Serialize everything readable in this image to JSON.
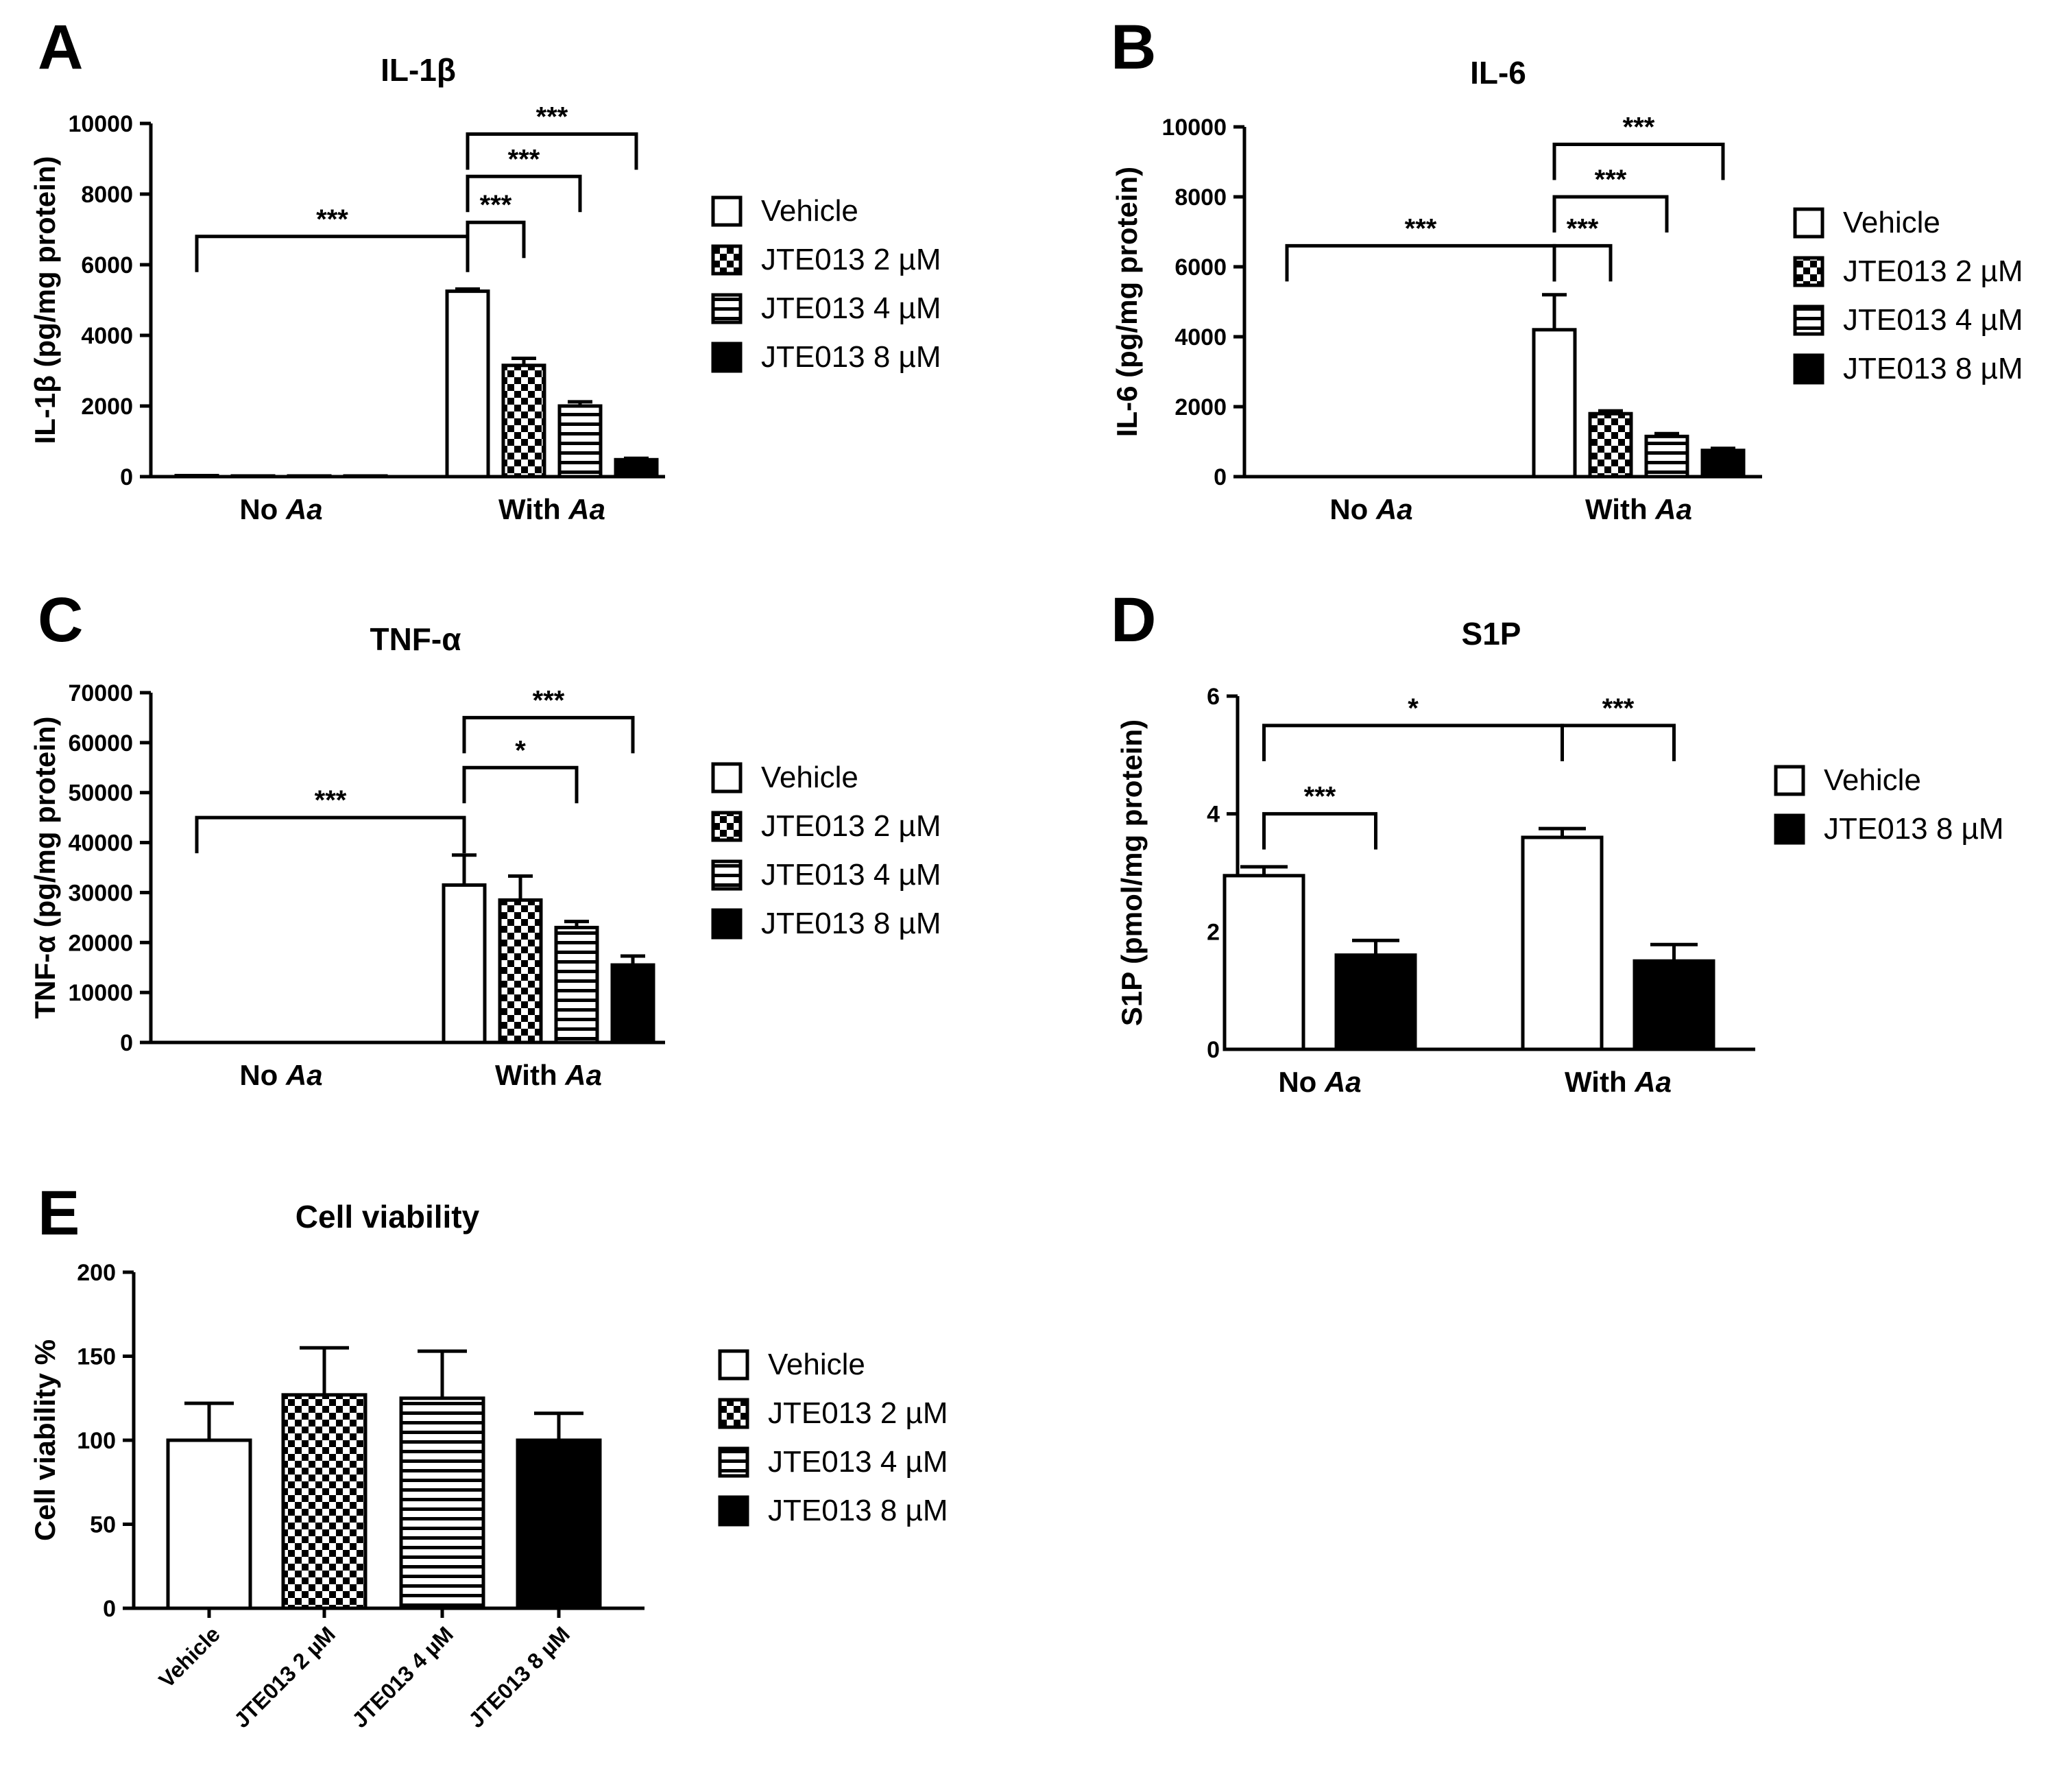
{
  "legend_labels": {
    "vehicle": "Vehicle",
    "jte2": "JTE013 2 µM",
    "jte4": "JTE013 4 µM",
    "jte8": "JTE013 8 µM"
  },
  "chart_data": [
    {
      "panel": "A",
      "type": "bar",
      "title": "IL-1β",
      "ylabel": "IL-1β (pg/mg protein)",
      "xlabel": "",
      "ylim": [
        0,
        10000
      ],
      "yticks": [
        "0",
        "2000",
        "4000",
        "6000",
        "8000",
        "10000"
      ],
      "groups": [
        {
          "pre": "No ",
          "it": "Aa"
        },
        {
          "pre": "With ",
          "it": "Aa"
        }
      ],
      "series": [
        {
          "name": "Vehicle",
          "pattern": "white",
          "values": [
            30,
            5250
          ],
          "errors": [
            0,
            60
          ]
        },
        {
          "name": "JTE013 2 µM",
          "pattern": "checker",
          "values": [
            20,
            3150
          ],
          "errors": [
            0,
            200
          ]
        },
        {
          "name": "JTE013 4 µM",
          "pattern": "hlines",
          "values": [
            20,
            2000
          ],
          "errors": [
            0,
            120
          ]
        },
        {
          "name": "JTE013 8 µM",
          "pattern": "black",
          "values": [
            20,
            480
          ],
          "errors": [
            0,
            40
          ]
        }
      ],
      "legend": [
        "Vehicle",
        "JTE013 2 µM",
        "JTE013 4 µM",
        "JTE013 8 µM"
      ],
      "annotations": [
        {
          "text": "***",
          "from": [
            0,
            0
          ],
          "to": [
            1,
            0
          ],
          "y": 6800
        },
        {
          "text": "***",
          "from": [
            1,
            0
          ],
          "to": [
            1,
            1
          ],
          "y": 7200
        },
        {
          "text": "***",
          "from": [
            1,
            0
          ],
          "to": [
            1,
            2
          ],
          "y": 8500
        },
        {
          "text": "***",
          "from": [
            1,
            0
          ],
          "to": [
            1,
            3
          ],
          "y": 9700
        }
      ]
    },
    {
      "panel": "B",
      "type": "bar",
      "title": "IL-6",
      "ylabel": "IL-6 (pg/mg protein)",
      "xlabel": "",
      "ylim": [
        0,
        10000
      ],
      "yticks": [
        "0",
        "2000",
        "4000",
        "6000",
        "8000",
        "10000"
      ],
      "groups": [
        {
          "pre": "No ",
          "it": "Aa"
        },
        {
          "pre": "With ",
          "it": "Aa"
        }
      ],
      "series": [
        {
          "name": "Vehicle",
          "pattern": "white",
          "values": [
            0,
            4200
          ],
          "errors": [
            0,
            1000
          ]
        },
        {
          "name": "JTE013 2 µM",
          "pattern": "checker",
          "values": [
            0,
            1800
          ],
          "errors": [
            0,
            80
          ]
        },
        {
          "name": "JTE013 4 µM",
          "pattern": "hlines",
          "values": [
            0,
            1150
          ],
          "errors": [
            0,
            80
          ]
        },
        {
          "name": "JTE013 8 µM",
          "pattern": "black",
          "values": [
            0,
            750
          ],
          "errors": [
            0,
            60
          ]
        }
      ],
      "legend": [
        "Vehicle",
        "JTE013 2 µM",
        "JTE013 4 µM",
        "JTE013 8 µM"
      ],
      "annotations": [
        {
          "text": "***",
          "from": [
            0,
            0
          ],
          "to": [
            1,
            0
          ],
          "y": 6600
        },
        {
          "text": "***",
          "from": [
            1,
            0
          ],
          "to": [
            1,
            1
          ],
          "y": 6600
        },
        {
          "text": "***",
          "from": [
            1,
            0
          ],
          "to": [
            1,
            2
          ],
          "y": 8000
        },
        {
          "text": "***",
          "from": [
            1,
            0
          ],
          "to": [
            1,
            3
          ],
          "y": 9500
        }
      ]
    },
    {
      "panel": "C",
      "type": "bar",
      "title": "TNF-α",
      "ylabel": "TNF-α (pg/mg protein)",
      "xlabel": "",
      "ylim": [
        0,
        70000
      ],
      "yticks": [
        "0",
        "10000",
        "20000",
        "30000",
        "40000",
        "50000",
        "60000",
        "70000"
      ],
      "groups": [
        {
          "pre": "No ",
          "it": "Aa"
        },
        {
          "pre": "With ",
          "it": "Aa"
        }
      ],
      "series": [
        {
          "name": "Vehicle",
          "pattern": "white",
          "values": [
            0,
            31500
          ],
          "errors": [
            0,
            6000
          ]
        },
        {
          "name": "JTE013 2 µM",
          "pattern": "checker",
          "values": [
            0,
            28500
          ],
          "errors": [
            0,
            4800
          ]
        },
        {
          "name": "JTE013 4 µM",
          "pattern": "hlines",
          "values": [
            0,
            23000
          ],
          "errors": [
            0,
            1200
          ]
        },
        {
          "name": "JTE013 8 µM",
          "pattern": "black",
          "values": [
            0,
            15500
          ],
          "errors": [
            0,
            1800
          ]
        }
      ],
      "legend": [
        "Vehicle",
        "JTE013 2 µM",
        "JTE013 4 µM",
        "JTE013 8 µM"
      ],
      "annotations": [
        {
          "text": "***",
          "from": [
            0,
            0
          ],
          "to": [
            1,
            0
          ],
          "y": 45000
        },
        {
          "text": "*",
          "from": [
            1,
            0
          ],
          "to": [
            1,
            2
          ],
          "y": 55000
        },
        {
          "text": "***",
          "from": [
            1,
            0
          ],
          "to": [
            1,
            3
          ],
          "y": 65000
        }
      ]
    },
    {
      "panel": "D",
      "type": "bar",
      "title": "S1P",
      "ylabel": "S1P (pmol/mg protein)",
      "xlabel": "",
      "ylim": [
        0,
        6
      ],
      "yticks": [
        "0",
        "2",
        "4",
        "6"
      ],
      "groups": [
        {
          "pre": "No ",
          "it": "Aa"
        },
        {
          "pre": "With ",
          "it": "Aa"
        }
      ],
      "series": [
        {
          "name": "Vehicle",
          "pattern": "white",
          "values": [
            2.95,
            3.6
          ],
          "errors": [
            0.15,
            0.15
          ]
        },
        {
          "name": "JTE013 8 µM",
          "pattern": "black",
          "values": [
            1.6,
            1.5
          ],
          "errors": [
            0.25,
            0.28
          ]
        }
      ],
      "legend": [
        "Vehicle",
        "JTE013 8 µM"
      ],
      "annotations": [
        {
          "text": "***",
          "from": [
            0,
            0
          ],
          "to": [
            0,
            1
          ],
          "y": 4.0
        },
        {
          "text": "*",
          "from": [
            0,
            0
          ],
          "to": [
            1,
            0
          ],
          "y": 5.5
        },
        {
          "text": "***",
          "from": [
            1,
            0
          ],
          "to": [
            1,
            1
          ],
          "y": 5.5
        }
      ]
    },
    {
      "panel": "E",
      "type": "bar",
      "title": "Cell viability",
      "ylabel": "Cell viability %",
      "xlabel": "",
      "ylim": [
        0,
        200
      ],
      "yticks": [
        "0",
        "50",
        "100",
        "150",
        "200"
      ],
      "categories": [
        "Vehicle",
        "JTE013 2 µM",
        "JTE013 4 µM",
        "JTE013 8 µM"
      ],
      "values": [
        100,
        127,
        125,
        100
      ],
      "errors": [
        22,
        28,
        28,
        16
      ],
      "patterns": [
        "white",
        "checker",
        "hlines",
        "black"
      ],
      "legend": [
        "Vehicle",
        "JTE013 2 µM",
        "JTE013 4 µM",
        "JTE013 8 µM"
      ]
    }
  ]
}
